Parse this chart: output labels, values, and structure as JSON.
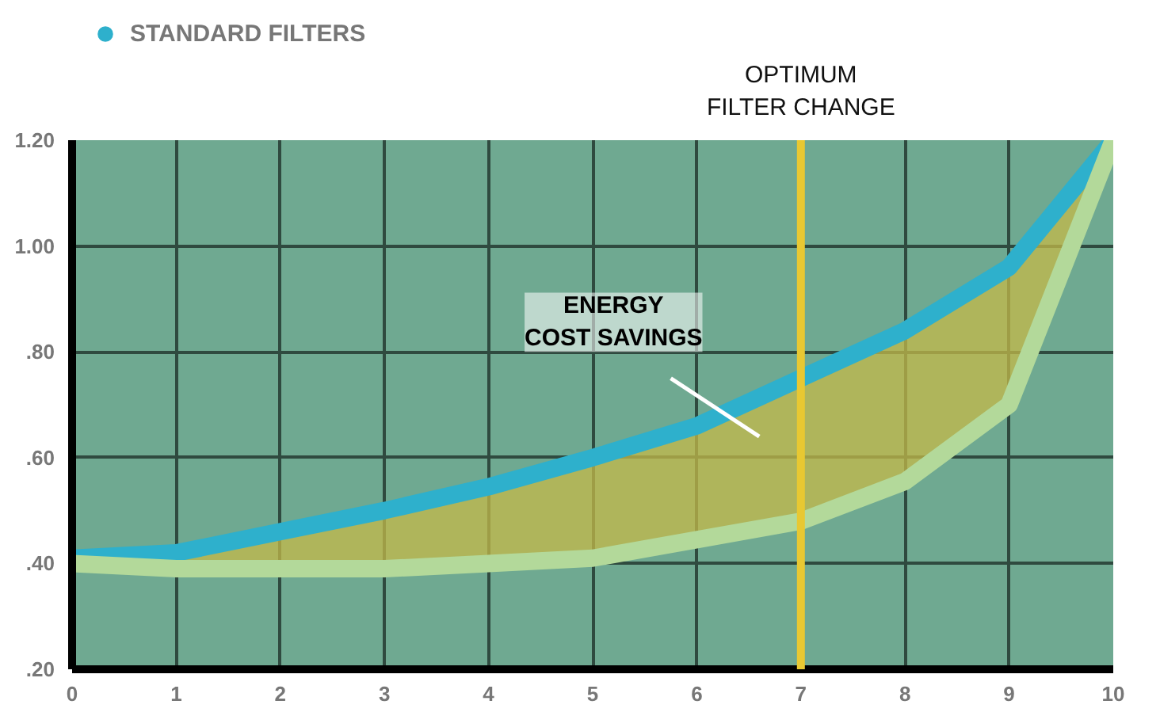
{
  "chart_data": {
    "type": "line",
    "x": [
      0,
      1,
      2,
      3,
      4,
      5,
      6,
      7,
      8,
      9,
      10
    ],
    "series": [
      {
        "name": "STANDARD FILTERS",
        "color": "#2eb0cc",
        "values": [
          0.41,
          0.42,
          0.46,
          0.5,
          0.545,
          0.6,
          0.66,
          0.75,
          0.84,
          0.96,
          1.2
        ]
      },
      {
        "color": "#b3d99a",
        "values": [
          0.4,
          0.39,
          0.39,
          0.39,
          0.4,
          0.41,
          0.445,
          0.48,
          0.555,
          0.7,
          1.2
        ]
      }
    ],
    "xlim": [
      0,
      10
    ],
    "ylim": [
      0.2,
      1.2
    ],
    "xticks": [
      0,
      1,
      2,
      3,
      4,
      5,
      6,
      7,
      8,
      9,
      10
    ],
    "yticks": [
      {
        "value": 0.2,
        "label": ".20"
      },
      {
        "value": 0.4,
        "label": ".40"
      },
      {
        "value": 0.6,
        "label": ".60"
      },
      {
        "value": 0.8,
        "label": ".80"
      },
      {
        "value": 1.0,
        "label": "1.00"
      },
      {
        "value": 1.2,
        "label": "1.20"
      }
    ],
    "grid": true,
    "legend": "top left",
    "line_style": "solid",
    "ref_lines": [
      {
        "axis": "x",
        "value": 7,
        "label": "OPTIMUM\nFILTER CHANGE",
        "color": "#e8c832"
      }
    ],
    "annotations": [
      "ENERGY\nCOST SAVINGS"
    ]
  }
}
